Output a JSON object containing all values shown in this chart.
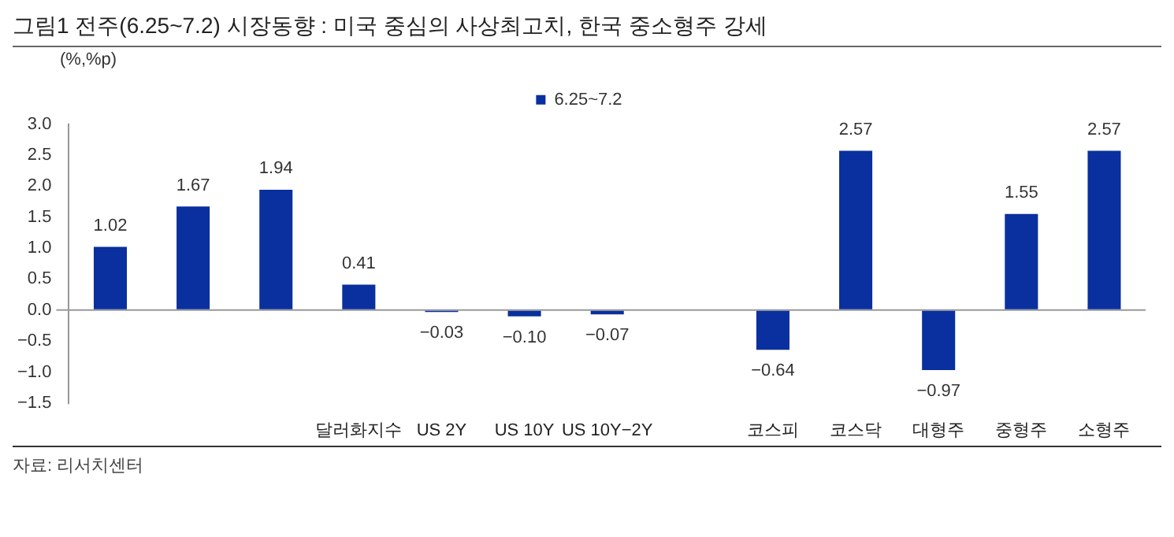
{
  "chart_data": {
    "type": "bar",
    "title": "그림1 전주(6.25~7.2) 시장동향 : 미국 중심의 사상최고치, 한국 중소형주 강세",
    "ylabel": "(%,%p)",
    "categories": [
      null,
      null,
      null,
      "달러화지수",
      "US 2Y",
      "US 10Y",
      "US 10Y−2Y",
      null,
      "코스피",
      "코스닥",
      "대형주",
      "중형주",
      "소형주"
    ],
    "series": [
      {
        "name": "6.25~7.2",
        "color": "#0a2f9e",
        "values": [
          1.02,
          1.67,
          1.94,
          0.41,
          -0.03,
          -0.1,
          -0.07,
          null,
          -0.64,
          2.57,
          -0.97,
          1.55,
          2.57
        ],
        "value_labels": [
          "1.02",
          "1.67",
          "1.94",
          "0.41",
          "−0.03",
          "−0.10",
          "−0.07",
          null,
          "−0.64",
          "2.57",
          "−0.97",
          "1.55",
          "2.57"
        ]
      }
    ],
    "ylim": [
      -1.5,
      3.0
    ],
    "yticks": [
      {
        "value": -1.5,
        "label": "−1.5"
      },
      {
        "value": -1,
        "label": "−1.0"
      },
      {
        "value": -0.5,
        "label": "−0.5"
      },
      {
        "value": 0,
        "label": "0.0"
      },
      {
        "value": 0.5,
        "label": "0.5"
      },
      {
        "value": 1,
        "label": "1.0"
      },
      {
        "value": 1.5,
        "label": "1.5"
      },
      {
        "value": 2,
        "label": "2.0"
      },
      {
        "value": 2.5,
        "label": "2.5"
      },
      {
        "value": 3,
        "label": "3.0"
      }
    ],
    "legend": "top",
    "annotations": [
      "자료: 리서치센터"
    ]
  }
}
